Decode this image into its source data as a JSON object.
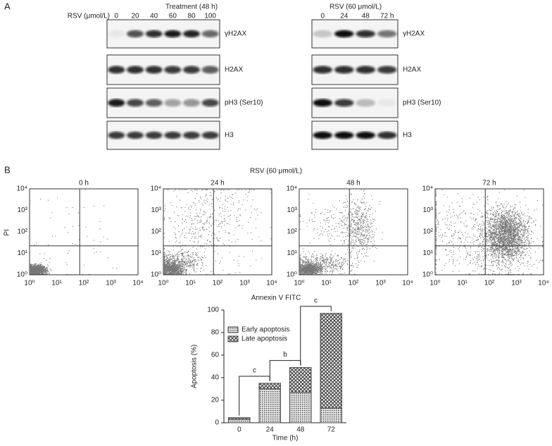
{
  "panel_a": {
    "label": "A",
    "dose_title": "Treatment (48 h)",
    "dose_axis_label": "RSV (μmol/L)",
    "doses": [
      "0",
      "20",
      "40",
      "60",
      "80",
      "100"
    ],
    "time_title": "RSV (60 μmol/L)",
    "times": [
      "0",
      "24",
      "48",
      "72 h"
    ],
    "proteins_left": [
      "γH2AX",
      "H2AX",
      "pH3 (Ser10)",
      "H3"
    ],
    "proteins_right": [
      "γH2AX",
      "H2AX",
      "pH3 (Ser10)",
      "H3"
    ]
  },
  "panel_b": {
    "label": "B",
    "title": "RSV (60 μmol/L)",
    "plot_titles": [
      "0 h",
      "24 h",
      "48 h",
      "72 h"
    ],
    "y_label": "PI",
    "x_label": "Annexin V FITC",
    "log_ticks": [
      "10⁰",
      "10¹",
      "10²",
      "10³",
      "10⁴"
    ]
  },
  "chart_data": {
    "type": "bar",
    "stacked": true,
    "categories": [
      "0",
      "24",
      "48",
      "72"
    ],
    "series": [
      {
        "name": "Early apoptosis",
        "color": "#444444",
        "values": [
          3,
          30,
          27,
          13
        ]
      },
      {
        "name": "Late apoptosis",
        "color": "#444444",
        "values": [
          1.5,
          5,
          22,
          84
        ]
      }
    ],
    "ylim": [
      0,
      100
    ],
    "yticks": [
      0,
      20,
      40,
      60,
      80,
      100
    ],
    "x_label": "Time (h)",
    "y_label": "Apoptosis (%)",
    "legend": "top-left",
    "annotations": [
      "c",
      "b",
      "c"
    ]
  }
}
